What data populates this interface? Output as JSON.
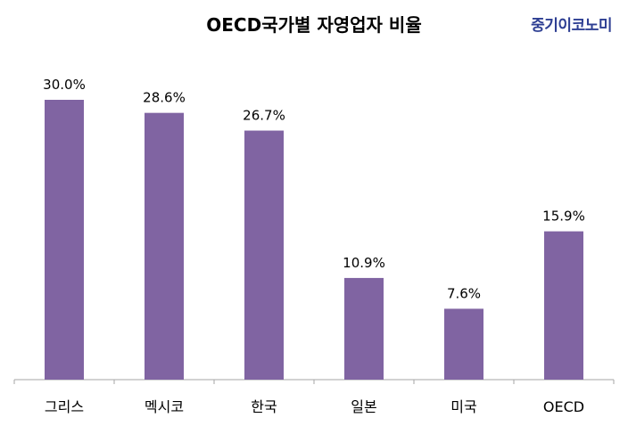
{
  "header": {
    "title": "OECD국가별 자영업자 비율",
    "brand": "중기이코노미"
  },
  "colors": {
    "bar": "#8064a2",
    "axis": "#a6a6a6"
  },
  "chart_data": {
    "type": "bar",
    "title": "OECD국가별 자영업자 비율",
    "categories": [
      "그리스",
      "멕시코",
      "한국",
      "일본",
      "미국",
      "OECD"
    ],
    "values": [
      30.0,
      28.6,
      26.7,
      10.9,
      7.6,
      15.9
    ],
    "value_labels": [
      "30.0%",
      "28.6%",
      "26.7%",
      "10.9%",
      "7.6%",
      "15.9%"
    ],
    "xlabel": "",
    "ylabel": "",
    "ylim": [
      0,
      30
    ],
    "grid": false,
    "legend": "none"
  }
}
